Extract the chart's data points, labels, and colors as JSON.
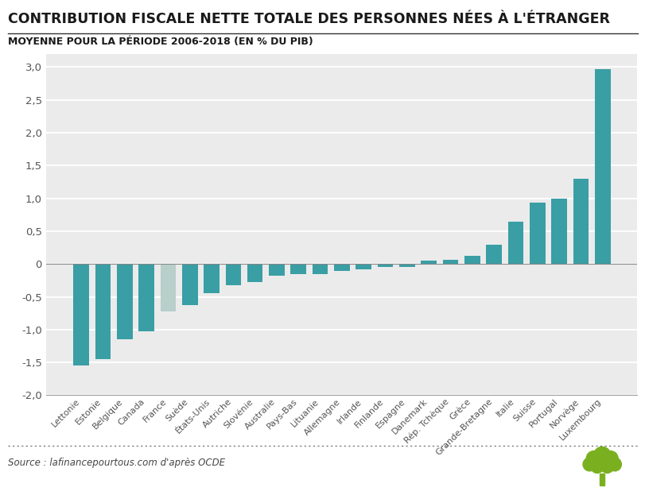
{
  "title": "CONTRIBUTION FISCALE NETTE TOTALE DES PERSONNES NÉES À L'ÉTRANGER",
  "subtitle": "MOYENNE POUR LA PÉRIODE 2006-2018 (EN % DU PIB)",
  "source": "Source : lafinancepourtous.com d'après OCDE",
  "categories": [
    "Lettonie",
    "Estonie",
    "Belgique",
    "Canada",
    "France",
    "Suède",
    "États-Unis",
    "Autriche",
    "Slovénie",
    "Australie",
    "Pays-Bas",
    "Lituanie",
    "Allemagne",
    "Irlande",
    "Finlande",
    "Espagne",
    "Danemark",
    "Rép. Tchèque",
    "Grèce",
    "Grande-Bretagne",
    "Italie",
    "Suisse",
    "Portugal",
    "Norvège",
    "Luxembourg"
  ],
  "values": [
    -1.55,
    -1.45,
    -1.15,
    -1.02,
    -0.72,
    -0.62,
    -0.45,
    -0.32,
    -0.28,
    -0.18,
    -0.15,
    -0.15,
    -0.1,
    -0.08,
    -0.05,
    -0.05,
    0.05,
    0.07,
    0.12,
    0.3,
    0.65,
    0.93,
    1.0,
    1.3,
    2.97
  ],
  "bar_color_default": "#3a9ea5",
  "bar_color_france": "#b8cfca",
  "france_index": 4,
  "ylim": [
    -2.0,
    3.2
  ],
  "yticks": [
    -2.0,
    -1.5,
    -1.0,
    -0.5,
    0.0,
    0.5,
    1.0,
    1.5,
    2.0,
    2.5,
    3.0
  ],
  "background_color": "#ffffff",
  "plot_bg_color": "#ebebeb",
  "title_fontsize": 12.5,
  "subtitle_fontsize": 9.0,
  "source_fontsize": 8.5,
  "grid_color": "#ffffff",
  "title_color": "#1a1a1a",
  "tick_color": "#555555",
  "tree_color": "#7ab020"
}
